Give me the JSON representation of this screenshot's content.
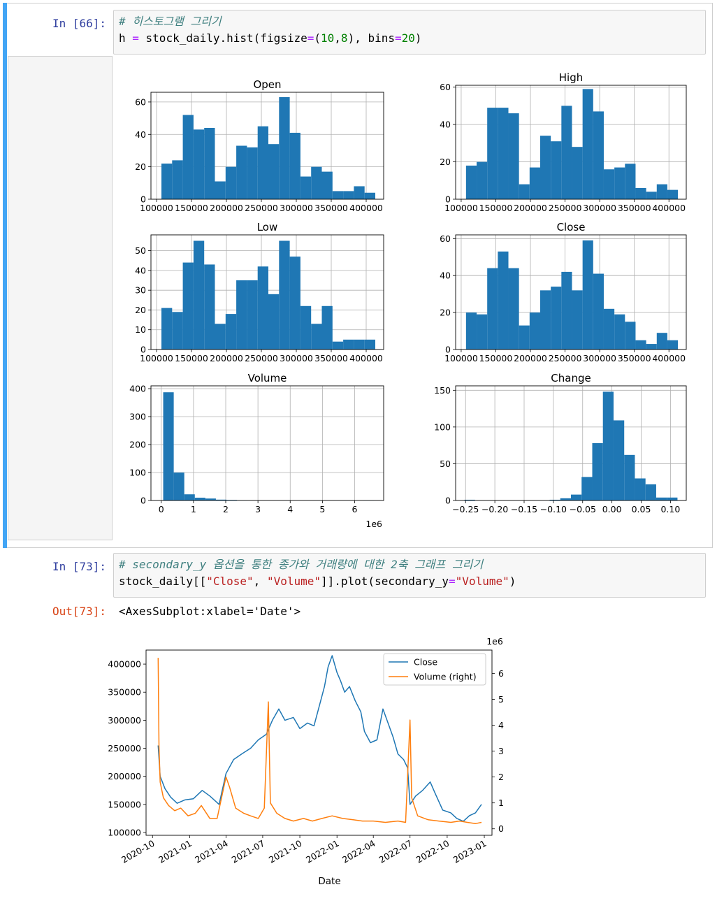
{
  "cells": [
    {
      "prompt": "In [66]:",
      "lines": [
        [
          {
            "t": "# 히스토그램 그리기",
            "c": "cm-comment"
          }
        ],
        [
          {
            "t": "h ",
            "c": ""
          },
          {
            "t": "=",
            "c": "cm-op"
          },
          {
            "t": " stock_daily.hist(figsize",
            "c": ""
          },
          {
            "t": "=",
            "c": "cm-op"
          },
          {
            "t": "(",
            "c": ""
          },
          {
            "t": "10",
            "c": "cm-num"
          },
          {
            "t": ",",
            "c": ""
          },
          {
            "t": "8",
            "c": "cm-num"
          },
          {
            "t": "), bins",
            "c": ""
          },
          {
            "t": "=",
            "c": "cm-op"
          },
          {
            "t": "20",
            "c": "cm-num"
          },
          {
            "t": ")",
            "c": ""
          }
        ]
      ]
    },
    {
      "prompt": "In [73]:",
      "lines": [
        [
          {
            "t": "# secondary_y 옵션을 통한 종가와 거래량에 대한 2축 그래프 그리기",
            "c": "cm-comment"
          }
        ],
        [
          {
            "t": "stock_daily[[",
            "c": ""
          },
          {
            "t": "\"Close\"",
            "c": "cm-str"
          },
          {
            "t": ", ",
            "c": ""
          },
          {
            "t": "\"Volume\"",
            "c": "cm-str"
          },
          {
            "t": "]].plot(secondary_y",
            "c": ""
          },
          {
            "t": "=",
            "c": "cm-op"
          },
          {
            "t": "\"Volume\"",
            "c": "cm-str"
          },
          {
            "t": ")",
            "c": ""
          }
        ]
      ],
      "out_prompt": "Out[73]:",
      "out_text": "<AxesSubplot:xlabel='Date'>"
    }
  ],
  "colors": {
    "bar": "#1f77b4",
    "close": "#1f77b4",
    "volume": "#ff7f0e",
    "grid": "#b0b0b0"
  },
  "chart_data": [
    {
      "type": "bar",
      "title": "Open",
      "ticks_x": [
        "100000",
        "150000",
        "200000",
        "250000",
        "300000",
        "350000",
        "400000"
      ],
      "xlim": [
        92000,
        425000
      ],
      "ylim": [
        0,
        66
      ],
      "yticks": [
        0,
        20,
        40,
        60
      ],
      "bins_start": 107000,
      "bin_width": 15300,
      "values": [
        22,
        24,
        52,
        43,
        44,
        11,
        20,
        33,
        32,
        45,
        34,
        63,
        41,
        14,
        20,
        17,
        5,
        5,
        8,
        4
      ]
    },
    {
      "type": "bar",
      "title": "High",
      "ticks_x": [
        "100000",
        "150000",
        "200000",
        "250000",
        "300000",
        "350000",
        "400000"
      ],
      "xlim": [
        92000,
        425000
      ],
      "ylim": [
        0,
        61
      ],
      "yticks": [
        0,
        20,
        40,
        60
      ],
      "bins_start": 107000,
      "bin_width": 15300,
      "values": [
        18,
        20,
        49,
        49,
        46,
        8,
        17,
        34,
        31,
        50,
        28,
        59,
        47,
        16,
        17,
        19,
        6,
        4,
        8,
        5
      ]
    },
    {
      "type": "bar",
      "title": "Low",
      "ticks_x": [
        "100000",
        "150000",
        "200000",
        "250000",
        "300000",
        "350000",
        "400000"
      ],
      "xlim": [
        92000,
        425000
      ],
      "ylim": [
        0,
        58
      ],
      "yticks": [
        0,
        10,
        20,
        30,
        40,
        50
      ],
      "bins_start": 107000,
      "bin_width": 15300,
      "values": [
        21,
        19,
        44,
        55,
        43,
        13,
        18,
        35,
        35,
        42,
        28,
        55,
        47,
        22,
        13,
        22,
        4,
        5,
        5,
        5
      ]
    },
    {
      "type": "bar",
      "title": "Close",
      "ticks_x": [
        "100000",
        "150000",
        "200000",
        "250000",
        "300000",
        "350000",
        "400000"
      ],
      "xlim": [
        92000,
        425000
      ],
      "ylim": [
        0,
        62
      ],
      "yticks": [
        0,
        20,
        40,
        60
      ],
      "bins_start": 107000,
      "bin_width": 15300,
      "values": [
        20,
        19,
        44,
        53,
        44,
        13,
        20,
        32,
        34,
        42,
        32,
        59,
        41,
        22,
        19,
        15,
        5,
        3,
        9,
        5
      ]
    },
    {
      "type": "bar",
      "title": "Volume",
      "ticks_x": [
        "0",
        "1",
        "2",
        "3",
        "4",
        "5",
        "6"
      ],
      "offset_label": "1e6",
      "xlim": [
        -320000,
        6900000
      ],
      "ylim": [
        0,
        410
      ],
      "yticks": [
        0,
        100,
        200,
        300,
        400
      ],
      "bins_start": 60000,
      "bin_width": 327000,
      "values": [
        387,
        100,
        22,
        10,
        7,
        3,
        2,
        1,
        0,
        0,
        0,
        0,
        0,
        0,
        0,
        0,
        0,
        0,
        0,
        1
      ]
    },
    {
      "type": "bar",
      "title": "Change",
      "ticks_x": [
        "−0.25",
        "−0.20",
        "−0.15",
        "−0.10",
        "−0.05",
        "0.00",
        "0.05",
        "0.10"
      ],
      "xlim": [
        -0.267,
        0.127
      ],
      "ylim": [
        0,
        156
      ],
      "yticks": [
        0,
        50,
        100,
        150
      ],
      "bins_start": -0.252,
      "bin_width": 0.0182,
      "values": [
        1,
        0,
        0,
        0,
        0,
        0,
        0,
        0,
        1,
        3,
        8,
        32,
        78,
        148,
        109,
        62,
        30,
        22,
        4,
        4
      ]
    },
    {
      "type": "line",
      "xlabel": "Date",
      "legend_position": "upper-right",
      "x_ticks": [
        "2020-10",
        "2021-01",
        "2021-04",
        "2021-07",
        "2021-10",
        "2022-01",
        "2022-04",
        "2022-07",
        "2022-10",
        "2023-01"
      ],
      "y_ticks": [
        "100000",
        "150000",
        "200000",
        "250000",
        "300000",
        "350000",
        "400000"
      ],
      "y2_ticks": [
        "0",
        "1",
        "2",
        "3",
        "4",
        "5",
        "6"
      ],
      "y2_offset_label": "1e6",
      "ylim": [
        95000,
        425000
      ],
      "y2lim": [
        -250000,
        6900000
      ],
      "series": [
        {
          "name": "Close",
          "axis": "left",
          "values": [
            [
              "2020-10-15",
              255000
            ],
            [
              "2020-10-20",
              200000
            ],
            [
              "2020-11-01",
              178000
            ],
            [
              "2020-11-15",
              163000
            ],
            [
              "2020-12-01",
              152000
            ],
            [
              "2020-12-20",
              158000
            ],
            [
              "2021-01-10",
              160000
            ],
            [
              "2021-02-01",
              175000
            ],
            [
              "2021-02-20",
              165000
            ],
            [
              "2021-03-15",
              150000
            ],
            [
              "2021-04-01",
              205000
            ],
            [
              "2021-04-20",
              230000
            ],
            [
              "2021-05-10",
              240000
            ],
            [
              "2021-06-01",
              250000
            ],
            [
              "2021-06-20",
              265000
            ],
            [
              "2021-07-10",
              275000
            ],
            [
              "2021-07-25",
              300000
            ],
            [
              "2021-08-10",
              320000
            ],
            [
              "2021-08-25",
              300000
            ],
            [
              "2021-09-15",
              305000
            ],
            [
              "2021-10-01",
              285000
            ],
            [
              "2021-10-20",
              295000
            ],
            [
              "2021-11-05",
              290000
            ],
            [
              "2021-11-20",
              330000
            ],
            [
              "2021-12-01",
              360000
            ],
            [
              "2021-12-10",
              395000
            ],
            [
              "2021-12-20",
              415000
            ],
            [
              "2022-01-01",
              385000
            ],
            [
              "2022-01-10",
              370000
            ],
            [
              "2022-01-20",
              350000
            ],
            [
              "2022-02-01",
              360000
            ],
            [
              "2022-02-15",
              335000
            ],
            [
              "2022-03-01",
              315000
            ],
            [
              "2022-03-10",
              280000
            ],
            [
              "2022-03-25",
              260000
            ],
            [
              "2022-04-10",
              265000
            ],
            [
              "2022-04-25",
              320000
            ],
            [
              "2022-05-10",
              290000
            ],
            [
              "2022-05-20",
              270000
            ],
            [
              "2022-06-01",
              240000
            ],
            [
              "2022-06-15",
              230000
            ],
            [
              "2022-06-25",
              215000
            ],
            [
              "2022-07-01",
              150000
            ],
            [
              "2022-07-15",
              165000
            ],
            [
              "2022-08-01",
              175000
            ],
            [
              "2022-08-20",
              190000
            ],
            [
              "2022-09-01",
              170000
            ],
            [
              "2022-09-20",
              140000
            ],
            [
              "2022-10-10",
              135000
            ],
            [
              "2022-10-25",
              125000
            ],
            [
              "2022-11-10",
              120000
            ],
            [
              "2022-11-25",
              130000
            ],
            [
              "2022-12-10",
              135000
            ],
            [
              "2022-12-25",
              150000
            ]
          ]
        },
        {
          "name": "Volume (right)",
          "axis": "right",
          "values": [
            [
              "2020-10-15",
              6600000
            ],
            [
              "2020-10-17",
              3200000
            ],
            [
              "2020-10-20",
              1800000
            ],
            [
              "2020-10-28",
              1200000
            ],
            [
              "2020-11-10",
              900000
            ],
            [
              "2020-11-25",
              700000
            ],
            [
              "2020-12-10",
              800000
            ],
            [
              "2020-12-28",
              500000
            ],
            [
              "2021-01-15",
              600000
            ],
            [
              "2021-01-30",
              900000
            ],
            [
              "2021-02-20",
              400000
            ],
            [
              "2021-03-10",
              400000
            ],
            [
              "2021-04-01",
              2000000
            ],
            [
              "2021-04-10",
              1600000
            ],
            [
              "2021-04-25",
              800000
            ],
            [
              "2021-05-15",
              600000
            ],
            [
              "2021-06-01",
              500000
            ],
            [
              "2021-06-20",
              400000
            ],
            [
              "2021-07-05",
              800000
            ],
            [
              "2021-07-15",
              4900000
            ],
            [
              "2021-07-20",
              1000000
            ],
            [
              "2021-08-05",
              600000
            ],
            [
              "2021-08-25",
              400000
            ],
            [
              "2021-09-15",
              300000
            ],
            [
              "2021-10-10",
              400000
            ],
            [
              "2021-11-01",
              300000
            ],
            [
              "2021-11-25",
              400000
            ],
            [
              "2021-12-20",
              500000
            ],
            [
              "2022-01-15",
              400000
            ],
            [
              "2022-02-10",
              350000
            ],
            [
              "2022-03-05",
              300000
            ],
            [
              "2022-04-01",
              300000
            ],
            [
              "2022-05-01",
              250000
            ],
            [
              "2022-06-01",
              300000
            ],
            [
              "2022-06-20",
              250000
            ],
            [
              "2022-07-01",
              4200000
            ],
            [
              "2022-07-05",
              1200000
            ],
            [
              "2022-07-20",
              500000
            ],
            [
              "2022-08-15",
              350000
            ],
            [
              "2022-09-10",
              300000
            ],
            [
              "2022-10-10",
              250000
            ],
            [
              "2022-11-01",
              300000
            ],
            [
              "2022-11-20",
              250000
            ],
            [
              "2022-12-10",
              200000
            ],
            [
              "2022-12-25",
              250000
            ]
          ]
        }
      ]
    }
  ]
}
